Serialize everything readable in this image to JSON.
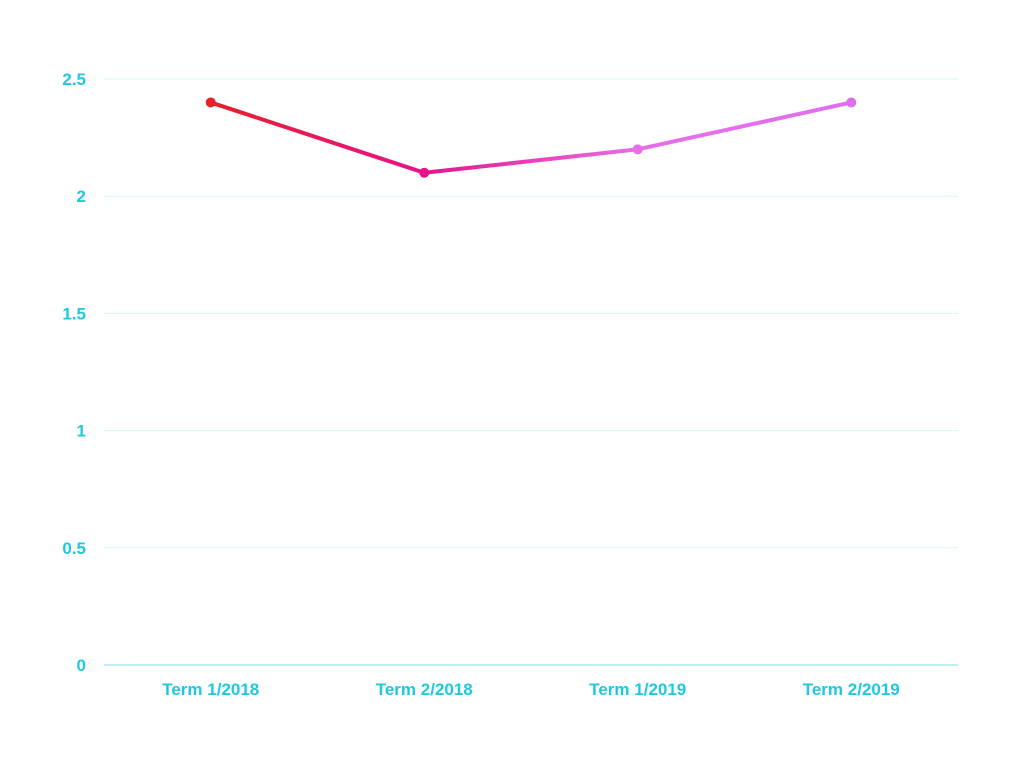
{
  "chart_data": {
    "type": "line",
    "title": "",
    "xlabel": "",
    "ylabel": "",
    "categories": [
      "Term 1/2018",
      "Term 2/2018",
      "Term 1/2019",
      "Term 2/2019"
    ],
    "series": [
      {
        "values": [
          2.4,
          2.1,
          2.2,
          2.4
        ]
      }
    ],
    "point_colors": [
      "#e8202a",
      "#e8128c",
      "#e86ee8",
      "#e06ef0"
    ],
    "yticks": [
      "0",
      "0.5",
      "1",
      "1.5",
      "2",
      "2.5"
    ],
    "ylim": [
      0,
      2.5
    ],
    "grid": true,
    "legend": "none",
    "colors": {
      "axis_text": "#1ec8e0",
      "grid": "#d6f4fa",
      "axis_line": "#7fdcec"
    }
  }
}
